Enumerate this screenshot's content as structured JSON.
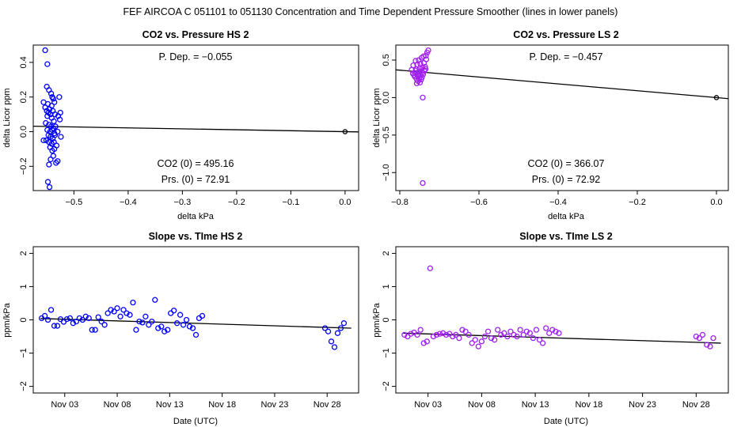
{
  "suptitle": "FEF   AIRCOA C   051101 to 051130   Concentration and Time Dependent Pressure Smoother (lines in lower panels)",
  "colors": {
    "hs": "#0000ff",
    "ls": "#a020f0",
    "line": "#000000",
    "frame": "#000000"
  },
  "chart_data": [
    {
      "id": "p1",
      "type": "scatter",
      "title": "CO2 vs. Pressure HS 2",
      "xlabel": "delta kPa",
      "ylabel": "delta Licor ppm",
      "xlim": [
        -0.575,
        0.025
      ],
      "ylim": [
        -0.34,
        0.5
      ],
      "xticks": [
        -0.5,
        -0.4,
        -0.3,
        -0.2,
        -0.1,
        0.0
      ],
      "xticklabels": [
        "−0.5",
        "−0.4",
        "−0.3",
        "−0.2",
        "−0.1",
        "0.0"
      ],
      "yticks": [
        -0.2,
        0.0,
        0.2,
        0.4
      ],
      "yticklabels": [
        "−0.2",
        "0.0",
        "0.2",
        "0.4"
      ],
      "color_key": "hs",
      "annotations": {
        "pdep": "P. Dep. =  −0.055",
        "co2_0": "CO2 (0) =  495.16",
        "prs_0": "Prs. (0) =  72.91"
      },
      "fit_line": {
        "x": [
          -0.575,
          0.025
        ],
        "y": [
          0.0316,
          -0.0014
        ]
      },
      "ref_point": {
        "x": 0.0,
        "y": 0.0
      },
      "points": [
        [
          -0.553,
          0.47
        ],
        [
          -0.549,
          0.39
        ],
        [
          -0.55,
          0.26
        ],
        [
          -0.546,
          0.24
        ],
        [
          -0.542,
          0.22
        ],
        [
          -0.548,
          0.16
        ],
        [
          -0.556,
          0.17
        ],
        [
          -0.54,
          0.2
        ],
        [
          -0.538,
          0.19
        ],
        [
          -0.527,
          0.2
        ],
        [
          -0.553,
          0.14
        ],
        [
          -0.545,
          0.13
        ],
        [
          -0.541,
          0.15
        ],
        [
          -0.536,
          0.17
        ],
        [
          -0.525,
          0.11
        ],
        [
          -0.55,
          0.12
        ],
        [
          -0.547,
          0.11
        ],
        [
          -0.543,
          0.1
        ],
        [
          -0.539,
          0.12
        ],
        [
          -0.535,
          0.1
        ],
        [
          -0.549,
          0.09
        ],
        [
          -0.541,
          0.08
        ],
        [
          -0.529,
          0.09
        ],
        [
          -0.537,
          0.06
        ],
        [
          -0.526,
          0.07
        ],
        [
          -0.552,
          0.05
        ],
        [
          -0.546,
          0.04
        ],
        [
          -0.542,
          0.03
        ],
        [
          -0.538,
          0.02
        ],
        [
          -0.534,
          0.03
        ],
        [
          -0.549,
          0.01
        ],
        [
          -0.544,
          0.0
        ],
        [
          -0.54,
          0.01
        ],
        [
          -0.536,
          -0.01
        ],
        [
          -0.53,
          0.0
        ],
        [
          -0.547,
          -0.02
        ],
        [
          -0.543,
          -0.03
        ],
        [
          -0.539,
          -0.04
        ],
        [
          -0.535,
          -0.02
        ],
        [
          -0.524,
          -0.03
        ],
        [
          -0.556,
          -0.05
        ],
        [
          -0.551,
          -0.05
        ],
        [
          -0.546,
          -0.06
        ],
        [
          -0.541,
          -0.07
        ],
        [
          -0.537,
          -0.06
        ],
        [
          -0.544,
          -0.09
        ],
        [
          -0.54,
          -0.11
        ],
        [
          -0.536,
          -0.1
        ],
        [
          -0.532,
          -0.08
        ],
        [
          -0.538,
          -0.14
        ],
        [
          -0.543,
          -0.16
        ],
        [
          -0.546,
          -0.19
        ],
        [
          -0.533,
          -0.18
        ],
        [
          -0.53,
          -0.17
        ],
        [
          -0.548,
          -0.29
        ],
        [
          -0.545,
          -0.32
        ]
      ]
    },
    {
      "id": "p2",
      "type": "scatter",
      "title": "CO2 vs. Pressure LS 2",
      "xlabel": "delta kPa",
      "ylabel": "delta Licor ppm",
      "xlim": [
        -0.81,
        0.03
      ],
      "ylim": [
        -1.24,
        0.7
      ],
      "xticks": [
        -0.8,
        -0.6,
        -0.4,
        -0.2,
        0.0
      ],
      "xticklabels": [
        "−0.8",
        "−0.6",
        "−0.4",
        "−0.2",
        "0.0"
      ],
      "yticks": [
        -1.0,
        -0.5,
        0.0,
        0.5
      ],
      "yticklabels": [
        "−1.0",
        "−0.5",
        "0.0",
        "0.5"
      ],
      "color_key": "ls",
      "annotations": {
        "pdep": "P. Dep. =  −0.457",
        "co2_0": "CO2 (0) =  366.07",
        "prs_0": "Prs. (0) =  72.92"
      },
      "fit_line": {
        "x": [
          -0.81,
          0.03
        ],
        "y": [
          0.37,
          -0.014
        ]
      },
      "ref_point": {
        "x": 0.0,
        "y": 0.0
      },
      "points": [
        [
          -0.728,
          0.63
        ],
        [
          -0.731,
          0.6
        ],
        [
          -0.734,
          0.56
        ],
        [
          -0.74,
          0.55
        ],
        [
          -0.745,
          0.53
        ],
        [
          -0.752,
          0.5
        ],
        [
          -0.76,
          0.49
        ],
        [
          -0.733,
          0.51
        ],
        [
          -0.739,
          0.46
        ],
        [
          -0.748,
          0.45
        ],
        [
          -0.756,
          0.44
        ],
        [
          -0.766,
          0.43
        ],
        [
          -0.736,
          0.41
        ],
        [
          -0.743,
          0.4
        ],
        [
          -0.75,
          0.39
        ],
        [
          -0.758,
          0.38
        ],
        [
          -0.77,
          0.37
        ],
        [
          -0.738,
          0.36
        ],
        [
          -0.745,
          0.35
        ],
        [
          -0.752,
          0.34
        ],
        [
          -0.76,
          0.33
        ],
        [
          -0.767,
          0.32
        ],
        [
          -0.741,
          0.31
        ],
        [
          -0.748,
          0.3
        ],
        [
          -0.755,
          0.29
        ],
        [
          -0.762,
          0.28
        ],
        [
          -0.744,
          0.27
        ],
        [
          -0.751,
          0.26
        ],
        [
          -0.758,
          0.25
        ],
        [
          -0.746,
          0.24
        ],
        [
          -0.754,
          0.22
        ],
        [
          -0.749,
          0.2
        ],
        [
          -0.757,
          0.19
        ],
        [
          -0.743,
          0.33
        ],
        [
          -0.76,
          0.36
        ],
        [
          -0.735,
          0.38
        ],
        [
          -0.764,
          0.3
        ],
        [
          -0.742,
          1e-09
        ],
        [
          -0.742,
          -1.14
        ]
      ]
    },
    {
      "id": "p3",
      "type": "scatter",
      "title": "Slope vs. TIme HS 2",
      "xlabel": "Date (UTC)",
      "ylabel": "ppm/kPa",
      "xlim": [
        -1.0,
        30.0
      ],
      "ylim": [
        -2.2,
        2.2
      ],
      "xticks": [
        2,
        7,
        12,
        17,
        22,
        27
      ],
      "xticklabels": [
        "Nov 03",
        "Nov 08",
        "Nov 13",
        "Nov 18",
        "Nov 23",
        "Nov 28"
      ],
      "yticks": [
        -2,
        -1,
        0,
        1,
        2
      ],
      "yticklabels": [
        "−2",
        "−1",
        "0",
        "1",
        "2"
      ],
      "color_key": "hs",
      "fit_line": {
        "x": [
          -0.3,
          29.3
        ],
        "y": [
          0.04,
          -0.25
        ]
      },
      "points": [
        [
          -0.2,
          0.05
        ],
        [
          0.1,
          0.12
        ],
        [
          0.4,
          0.0
        ],
        [
          0.7,
          0.3
        ],
        [
          1.0,
          -0.18
        ],
        [
          1.3,
          -0.18
        ],
        [
          1.6,
          0.02
        ],
        [
          1.9,
          -0.06
        ],
        [
          2.2,
          0.02
        ],
        [
          2.5,
          0.05
        ],
        [
          2.8,
          -0.1
        ],
        [
          3.1,
          -0.05
        ],
        [
          3.4,
          0.05
        ],
        [
          3.7,
          0.0
        ],
        [
          4.0,
          0.1
        ],
        [
          4.3,
          0.05
        ],
        [
          4.6,
          -0.3
        ],
        [
          4.9,
          -0.3
        ],
        [
          5.2,
          0.08
        ],
        [
          5.5,
          -0.05
        ],
        [
          5.8,
          -0.15
        ],
        [
          6.1,
          0.2
        ],
        [
          6.4,
          0.3
        ],
        [
          6.7,
          0.25
        ],
        [
          7.0,
          0.35
        ],
        [
          7.3,
          0.1
        ],
        [
          7.6,
          0.3
        ],
        [
          7.9,
          0.2
        ],
        [
          8.2,
          0.15
        ],
        [
          8.5,
          0.52
        ],
        [
          8.8,
          -0.3
        ],
        [
          9.1,
          -0.05
        ],
        [
          9.4,
          -0.08
        ],
        [
          9.7,
          0.1
        ],
        [
          10.0,
          -0.15
        ],
        [
          10.3,
          -0.05
        ],
        [
          10.6,
          0.6
        ],
        [
          10.9,
          -0.25
        ],
        [
          11.2,
          -0.2
        ],
        [
          11.5,
          -0.35
        ],
        [
          11.8,
          -0.3
        ],
        [
          12.1,
          0.2
        ],
        [
          12.4,
          0.28
        ],
        [
          12.7,
          -0.1
        ],
        [
          13.0,
          0.15
        ],
        [
          13.3,
          -0.15
        ],
        [
          13.6,
          0.0
        ],
        [
          13.9,
          -0.2
        ],
        [
          14.2,
          -0.25
        ],
        [
          14.5,
          -0.45
        ],
        [
          14.8,
          0.05
        ],
        [
          15.1,
          0.12
        ],
        [
          26.8,
          -0.25
        ],
        [
          27.1,
          -0.35
        ],
        [
          27.4,
          -0.65
        ],
        [
          27.7,
          -0.82
        ],
        [
          28.0,
          -0.4
        ],
        [
          28.3,
          -0.25
        ],
        [
          28.6,
          -0.1
        ]
      ]
    },
    {
      "id": "p4",
      "type": "scatter",
      "title": "Slope vs. TIme LS 2",
      "xlabel": "Date (UTC)",
      "ylabel": "ppm/kPa",
      "xlim": [
        -1.0,
        30.0
      ],
      "ylim": [
        -2.2,
        2.2
      ],
      "xticks": [
        2,
        7,
        12,
        17,
        22,
        27
      ],
      "xticklabels": [
        "Nov 03",
        "Nov 08",
        "Nov 13",
        "Nov 18",
        "Nov 23",
        "Nov 28"
      ],
      "yticks": [
        -2,
        -1,
        0,
        1,
        2
      ],
      "yticklabels": [
        "−2",
        "−1",
        "0",
        "1",
        "2"
      ],
      "color_key": "ls",
      "fit_line": {
        "x": [
          -0.3,
          29.3
        ],
        "y": [
          -0.4,
          -0.7
        ]
      },
      "points": [
        [
          -0.2,
          -0.45
        ],
        [
          0.1,
          -0.5
        ],
        [
          0.4,
          -0.42
        ],
        [
          0.7,
          -0.38
        ],
        [
          1.0,
          -0.45
        ],
        [
          1.3,
          -0.3
        ],
        [
          1.6,
          -0.7
        ],
        [
          1.9,
          -0.65
        ],
        [
          2.2,
          1.55
        ],
        [
          2.5,
          -0.5
        ],
        [
          2.8,
          -0.45
        ],
        [
          3.1,
          -0.42
        ],
        [
          3.4,
          -0.4
        ],
        [
          3.7,
          -0.45
        ],
        [
          4.0,
          -0.42
        ],
        [
          4.3,
          -0.5
        ],
        [
          4.6,
          -0.45
        ],
        [
          4.9,
          -0.55
        ],
        [
          5.2,
          -0.3
        ],
        [
          5.5,
          -0.35
        ],
        [
          5.8,
          -0.45
        ],
        [
          6.1,
          -0.7
        ],
        [
          6.4,
          -0.6
        ],
        [
          6.7,
          -0.8
        ],
        [
          7.0,
          -0.65
        ],
        [
          7.3,
          -0.5
        ],
        [
          7.6,
          -0.35
        ],
        [
          7.9,
          -0.55
        ],
        [
          8.2,
          -0.6
        ],
        [
          8.5,
          -0.3
        ],
        [
          8.8,
          -0.45
        ],
        [
          9.1,
          -0.4
        ],
        [
          9.4,
          -0.5
        ],
        [
          9.7,
          -0.35
        ],
        [
          10.0,
          -0.45
        ],
        [
          10.3,
          -0.5
        ],
        [
          10.6,
          -0.3
        ],
        [
          10.9,
          -0.45
        ],
        [
          11.2,
          -0.35
        ],
        [
          11.5,
          -0.4
        ],
        [
          11.8,
          -0.55
        ],
        [
          12.1,
          -0.3
        ],
        [
          12.4,
          -0.6
        ],
        [
          12.7,
          -0.7
        ],
        [
          13.0,
          -0.25
        ],
        [
          13.3,
          -0.4
        ],
        [
          13.6,
          -0.3
        ],
        [
          13.9,
          -0.35
        ],
        [
          14.2,
          -0.4
        ],
        [
          27.0,
          -0.5
        ],
        [
          27.3,
          -0.55
        ],
        [
          27.6,
          -0.45
        ],
        [
          28.0,
          -0.75
        ],
        [
          28.3,
          -0.8
        ],
        [
          28.6,
          -0.55
        ]
      ]
    }
  ]
}
